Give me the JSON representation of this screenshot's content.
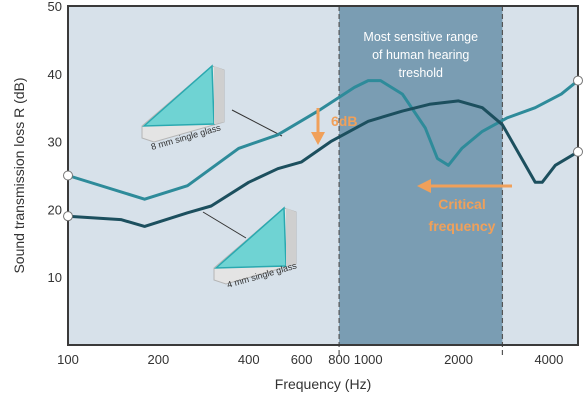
{
  "chart_data": {
    "type": "line",
    "title": "",
    "xlabel": "Frequency (Hz)",
    "ylabel": "Sound transmission loss R (dB)",
    "x_scale": "log",
    "xlim": [
      100,
      5000
    ],
    "ylim": [
      0,
      50
    ],
    "xticks": [
      100,
      200,
      400,
      600,
      800,
      1000,
      2000,
      4000
    ],
    "yticks": [
      10,
      20,
      30,
      40,
      50
    ],
    "grid": false,
    "series": [
      {
        "name": "8 mm single glass",
        "color": "#2e8b9a",
        "x": [
          100,
          180,
          250,
          370,
          500,
          680,
          900,
          1000,
          1100,
          1300,
          1550,
          1700,
          1850,
          2050,
          2400,
          2900,
          3600,
          4400,
          5000
        ],
        "y": [
          25,
          21.5,
          23.5,
          29,
          31,
          34.5,
          38,
          39,
          39,
          37,
          32,
          27.5,
          26.5,
          29,
          31.5,
          33.5,
          35,
          37,
          39
        ]
      },
      {
        "name": "4 mm single glass",
        "color": "#1c4f5e",
        "x": [
          100,
          150,
          180,
          250,
          300,
          400,
          500,
          600,
          750,
          1000,
          1300,
          1600,
          2000,
          2400,
          2800,
          3200,
          3600,
          3800,
          4200,
          5000
        ],
        "y": [
          19,
          18.5,
          17.5,
          19.5,
          20.5,
          24,
          26,
          27,
          30,
          33,
          34.5,
          35.5,
          36,
          35,
          32.5,
          28,
          24,
          24,
          26.5,
          28.5
        ]
      }
    ],
    "band": {
      "x_start": 800,
      "x_end": 2800,
      "label_lines": [
        "Most sensitive range",
        "of human hearing",
        "treshold"
      ]
    },
    "annotations": {
      "difference": "6dB",
      "critical_lines": [
        "Critical",
        "frequency"
      ]
    },
    "colors": {
      "plot_bg": "#d7e1ea",
      "band": "#7a9db3",
      "annotation": "#f0a05a",
      "frame": "#3a3a3a"
    }
  }
}
